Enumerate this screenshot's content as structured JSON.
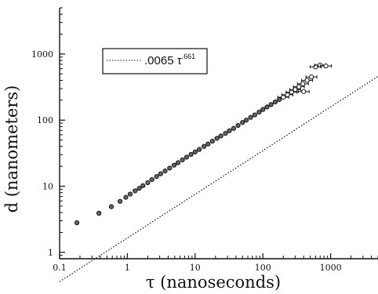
{
  "chart_data": {
    "type": "scatter",
    "xlabel": "τ (nanoseconds)",
    "ylabel": "d (nanometers)",
    "x_scale": "log",
    "y_scale": "log",
    "xlim": [
      0.1,
      5000
    ],
    "ylim": [
      0.8,
      5000
    ],
    "x_ticks": [
      "0.1",
      "1",
      "10",
      "100",
      "1000"
    ],
    "y_ticks": [
      "1",
      "10",
      "100",
      "1000"
    ],
    "legend": {
      "placement": "top-left",
      "label_main": ".0065 τ",
      "label_exponent": ".661"
    },
    "fit": {
      "coefficient": 0.0065,
      "exponent": 0.661,
      "style": "dotted"
    },
    "series": [
      {
        "points": [
          [
            0.18,
            2.8
          ],
          [
            0.38,
            3.9
          ],
          [
            0.58,
            4.9
          ],
          [
            0.78,
            5.9
          ],
          [
            0.95,
            6.8
          ],
          [
            1.1,
            7.6
          ],
          [
            1.3,
            8.5
          ],
          [
            1.5,
            9.3
          ],
          [
            1.7,
            10.2
          ],
          [
            2.0,
            11.3
          ],
          [
            2.3,
            12.6
          ],
          [
            2.7,
            14.0
          ],
          [
            3.1,
            15.4
          ],
          [
            3.6,
            17.0
          ],
          [
            4.2,
            18.8
          ],
          [
            4.9,
            20.8
          ],
          [
            5.6,
            22.7
          ],
          [
            6.5,
            25.0
          ],
          [
            7.5,
            27.5
          ],
          [
            8.7,
            30.3
          ],
          [
            10,
            33.0
          ],
          [
            11.5,
            36.0
          ],
          [
            13.5,
            40.0
          ],
          [
            15.5,
            43.5
          ],
          [
            18,
            48.0
          ],
          [
            21,
            53.0
          ],
          [
            24,
            57.5
          ],
          [
            28,
            63.0
          ],
          [
            32,
            69.0
          ],
          [
            37,
            75.0
          ],
          [
            43,
            83.0
          ],
          [
            50,
            92.0
          ],
          [
            57,
            100
          ],
          [
            66,
            110
          ],
          [
            76,
            120
          ],
          [
            88,
            132
          ],
          [
            100,
            145
          ],
          [
            115,
            158
          ],
          [
            132,
            172
          ],
          [
            152,
            188
          ],
          [
            175,
            205
          ],
          [
            200,
            222
          ],
          [
            230,
            242
          ],
          [
            265,
            265
          ],
          [
            300,
            290
          ],
          [
            340,
            320
          ],
          [
            390,
            355
          ],
          [
            450,
            400
          ],
          [
            520,
            450
          ],
          [
            600,
            640
          ],
          [
            700,
            680
          ],
          [
            850,
            660
          ],
          [
            400,
            270
          ]
        ]
      }
    ]
  }
}
